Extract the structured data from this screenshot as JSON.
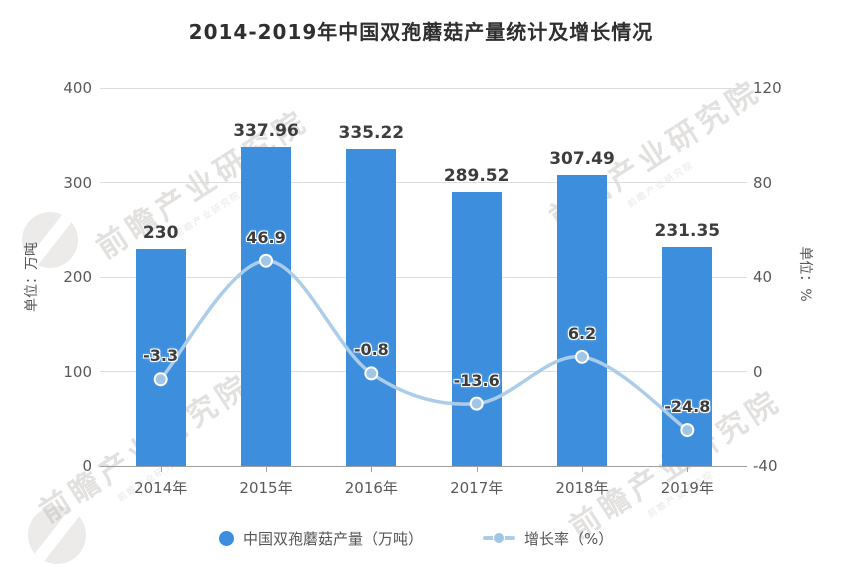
{
  "title": "2014-2019年中国双孢蘑菇产量统计及增长情况",
  "watermark": {
    "brand": "前瞻产业研究院"
  },
  "legend": [
    {
      "label": "中国双孢蘑菇产量（万吨）",
      "marker": "circle"
    },
    {
      "label": "增长率（%）",
      "marker": "line-dot"
    }
  ],
  "colors": {
    "bar": "#3e8ede",
    "line": "#abcde9",
    "marker_fill": "#9fc5e7",
    "marker_stroke": "#ffffff"
  },
  "chart_data": {
    "type": "bar+line",
    "categories": [
      "2014年",
      "2015年",
      "2016年",
      "2017年",
      "2018年",
      "2019年"
    ],
    "series": [
      {
        "name": "中国双孢蘑菇产量（万吨）",
        "type": "bar",
        "axis": "left",
        "values": [
          230,
          337.96,
          335.22,
          289.52,
          307.49,
          231.35
        ],
        "labels": [
          "230",
          "337.96",
          "335.22",
          "289.52",
          "307.49",
          "231.35"
        ]
      },
      {
        "name": "增长率（%）",
        "type": "line",
        "axis": "right",
        "values": [
          -3.3,
          46.9,
          -0.8,
          -13.6,
          6.2,
          -24.8
        ],
        "labels": [
          "-3.3",
          "46.9",
          "-0.8",
          "-13.6",
          "6.2",
          "-24.8"
        ]
      }
    ],
    "left_axis": {
      "name": "单位：万吨",
      "min": 0,
      "max": 400,
      "ticks": [
        0,
        100,
        200,
        300,
        400
      ]
    },
    "right_axis": {
      "name": "单位：%",
      "min": -40,
      "max": 120,
      "ticks": [
        -40,
        0,
        40,
        80,
        120
      ]
    },
    "grid": true,
    "legend_position": "bottom"
  }
}
